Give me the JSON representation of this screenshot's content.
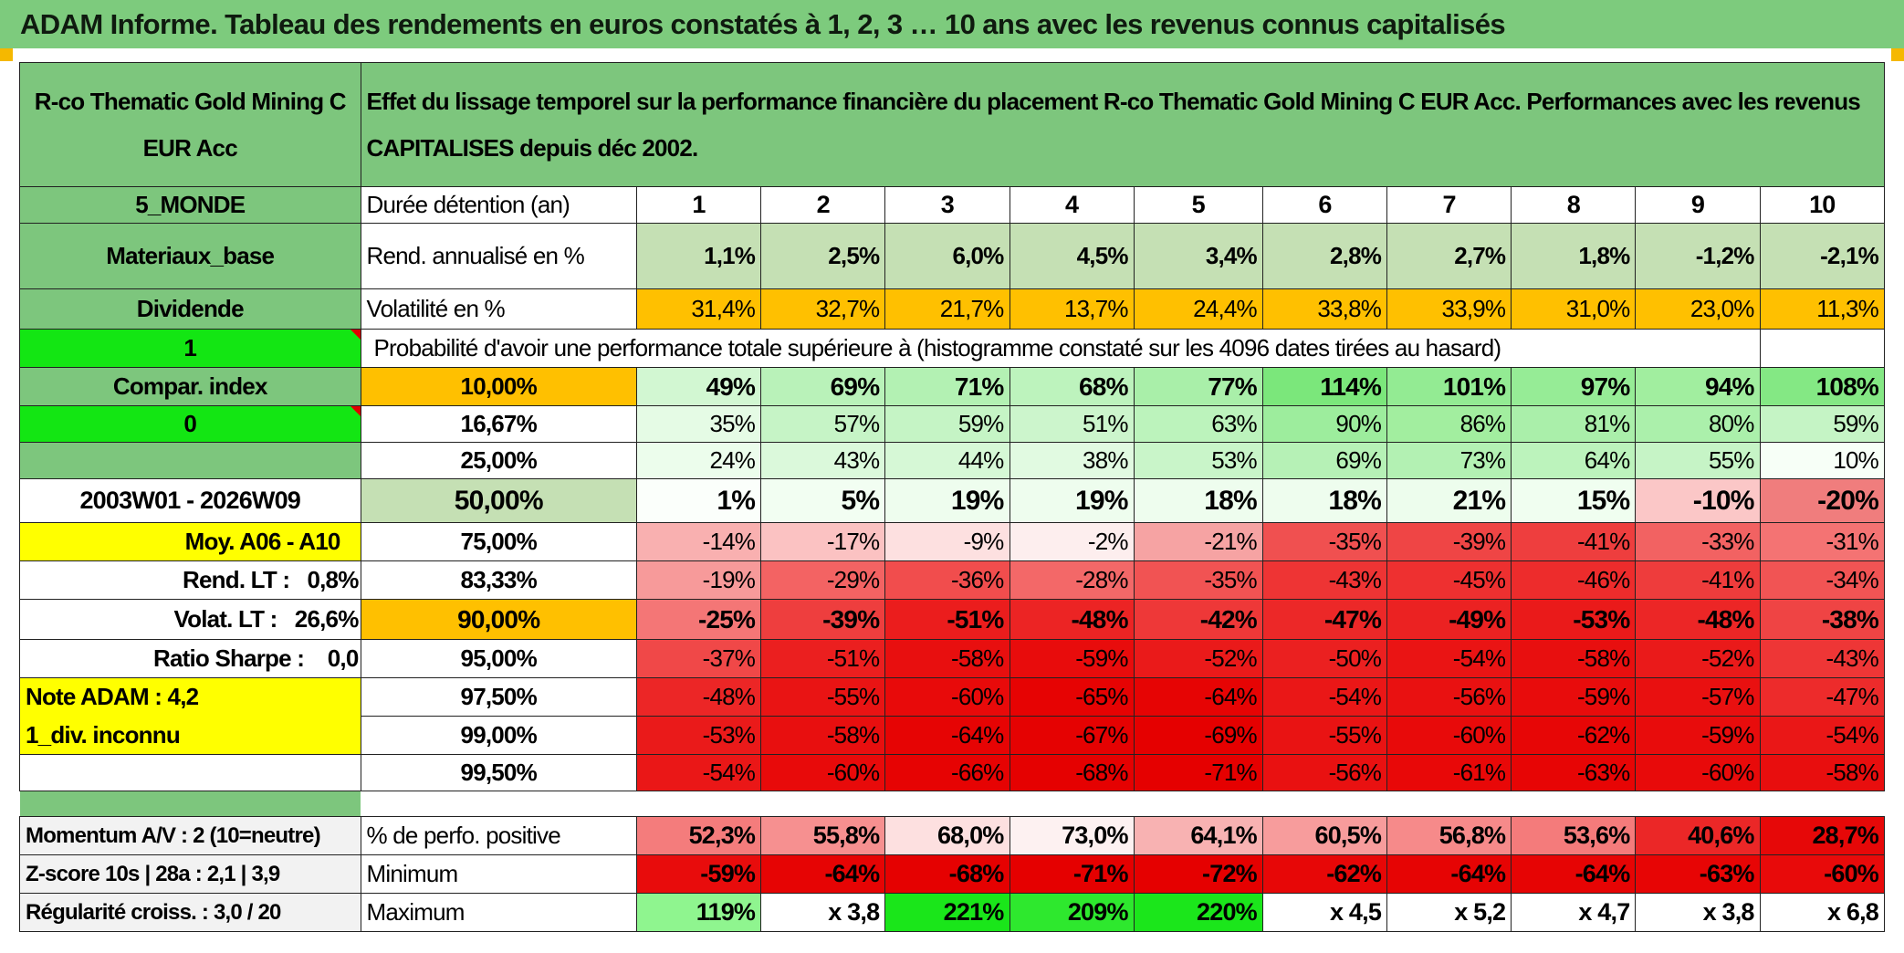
{
  "title": "ADAM Informe. Tableau des rendements en euros constatés à 1, 2, 3 … 10 ans avec les revenus connus capitalisés",
  "header": {
    "fund_name": "R-co Thematic Gold Mining C EUR Acc",
    "description": "Effet du lissage temporel sur la performance financière du placement R-co Thematic Gold Mining C EUR Acc. Performances avec les revenus CAPITALISES depuis déc 2002."
  },
  "side": {
    "zone": "5_MONDE",
    "sector": "Materiaux_base",
    "type": "Dividende",
    "flag1": "1",
    "compar": "Compar. index",
    "flag0": "0",
    "period": "2003W01 - 2026W09",
    "moy": "Moy. A06 - A10",
    "rend_lt": "Rend. LT :   0,8%",
    "volat_lt": "Volat. LT :   26,6%",
    "sharpe": "Ratio Sharpe :    0,0",
    "note": "Note ADAM : 4,2",
    "div": "1_div. inconnu"
  },
  "labels": {
    "duree": "Durée détention (an)",
    "rend": "Rend. annualisé en %",
    "vol": "Volatilité en %",
    "proba": "Probabilité d'avoir une performance totale supérieure à (histogramme constaté sur les 4096 dates tirées au hasard)"
  },
  "years": [
    "1",
    "2",
    "3",
    "4",
    "5",
    "6",
    "7",
    "8",
    "9",
    "10"
  ],
  "rend": [
    "1,1%",
    "2,5%",
    "6,0%",
    "4,5%",
    "3,4%",
    "2,8%",
    "2,7%",
    "1,8%",
    "-1,2%",
    "-2,1%"
  ],
  "vol": [
    "31,4%",
    "32,7%",
    "21,7%",
    "13,7%",
    "24,4%",
    "33,8%",
    "33,9%",
    "31,0%",
    "23,0%",
    "11,3%"
  ],
  "colors": {
    "title_bar": "#7dcb7d",
    "header_green": "#7dc67d",
    "bright_green": "#13e613",
    "yellow": "#ffff00",
    "orange": "#ffc000",
    "red_text": "#e00000"
  },
  "pct_rows": [
    {
      "p": "10,00%",
      "v": [
        "49%",
        "69%",
        "71%",
        "68%",
        "77%",
        "114%",
        "101%",
        "97%",
        "94%",
        "108%"
      ],
      "c": [
        "#d2f7d2",
        "#b9f2b9",
        "#b3f1b3",
        "#bdf3bd",
        "#a9efa9",
        "#7be77b",
        "#93eb93",
        "#96ec96",
        "#a1ee9f",
        "#84e884"
      ]
    },
    {
      "p": "16,67%",
      "v": [
        "35%",
        "57%",
        "59%",
        "51%",
        "63%",
        "90%",
        "86%",
        "81%",
        "80%",
        "59%"
      ],
      "c": [
        "#e5fbe5",
        "#c6f4c6",
        "#c5f4c5",
        "#ccf5cc",
        "#bcf3bc",
        "#9ded9d",
        "#a2ee9f",
        "#aaefaa",
        "#abf0ab",
        "#c5f4c5"
      ]
    },
    {
      "p": "25,00%",
      "v": [
        "24%",
        "43%",
        "44%",
        "38%",
        "53%",
        "69%",
        "73%",
        "64%",
        "55%",
        "10%"
      ],
      "c": [
        "#ecfdec",
        "#dbf9db",
        "#d6f8d6",
        "#e1fae1",
        "#c9f5c9",
        "#b6f1b6",
        "#b3f1b3",
        "#bcf3bc",
        "#c6f4c6",
        "#f7fff7"
      ]
    },
    {
      "p": "50,00%",
      "v": [
        "1%",
        "5%",
        "19%",
        "19%",
        "18%",
        "18%",
        "21%",
        "15%",
        "-10%",
        "-20%"
      ],
      "c": [
        "#fbfffb",
        "#f2fef2",
        "#eefdee",
        "#eefdee",
        "#eefdee",
        "#eefdee",
        "#edfded",
        "#f0fef0",
        "#fbc7c7",
        "#f07d7d"
      ]
    },
    {
      "p": "75,00%",
      "v": [
        "-14%",
        "-17%",
        "-9%",
        "-2%",
        "-21%",
        "-35%",
        "-39%",
        "-41%",
        "-33%",
        "-31%"
      ],
      "c": [
        "#f9b0b0",
        "#fbc2c2",
        "#fde0e0",
        "#fdeeee",
        "#f6a3a3",
        "#f05050",
        "#ef4545",
        "#ee3e3e",
        "#f26262",
        "#f47373"
      ]
    },
    {
      "p": "83,33%",
      "v": [
        "-19%",
        "-29%",
        "-36%",
        "-28%",
        "-35%",
        "-43%",
        "-45%",
        "-46%",
        "-41%",
        "-34%"
      ],
      "c": [
        "#f79a9a",
        "#f36363",
        "#f14d4d",
        "#f36868",
        "#f15353",
        "#ee3434",
        "#ee3030",
        "#ed2c2c",
        "#ee3c3c",
        "#f15454"
      ]
    },
    {
      "p": "90,00%",
      "v": [
        "-25%",
        "-39%",
        "-51%",
        "-48%",
        "-42%",
        "-47%",
        "-49%",
        "-53%",
        "-48%",
        "-38%"
      ],
      "c": [
        "#f47676",
        "#ee3e3e",
        "#eb1d1d",
        "#ec2424",
        "#ee3838",
        "#ec2828",
        "#eb2222",
        "#ea1a1a",
        "#ec2626",
        "#ef4444"
      ]
    },
    {
      "p": "95,00%",
      "v": [
        "-37%",
        "-51%",
        "-58%",
        "-59%",
        "-52%",
        "-50%",
        "-54%",
        "-58%",
        "-52%",
        "-43%"
      ],
      "c": [
        "#f04848",
        "#eb1f1f",
        "#e80f0f",
        "#e80c0c",
        "#ea1a1a",
        "#eb2020",
        "#ea1414",
        "#e80f0f",
        "#ea1a1a",
        "#ee3636"
      ]
    },
    {
      "p": "97,50%",
      "v": [
        "-48%",
        "-55%",
        "-60%",
        "-65%",
        "-64%",
        "-54%",
        "-56%",
        "-59%",
        "-57%",
        "-47%"
      ],
      "c": [
        "#ec2626",
        "#e91414",
        "#e80a0a",
        "#e60303",
        "#e60404",
        "#ea1717",
        "#e91111",
        "#e80c0c",
        "#e91010",
        "#ed2b2b"
      ]
    },
    {
      "p": "99,00%",
      "v": [
        "-53%",
        "-58%",
        "-64%",
        "-67%",
        "-69%",
        "-55%",
        "-60%",
        "-62%",
        "-59%",
        "-54%"
      ],
      "c": [
        "#ea1a1a",
        "#e80f0f",
        "#e60404",
        "#e50202",
        "#e50000",
        "#e91313",
        "#e80a0a",
        "#e70606",
        "#e80c0c",
        "#ea1717"
      ]
    },
    {
      "p": "99,50%",
      "v": [
        "-54%",
        "-60%",
        "-66%",
        "-68%",
        "-71%",
        "-56%",
        "-61%",
        "-63%",
        "-60%",
        "-58%"
      ],
      "c": [
        "#ea1717",
        "#e80a0a",
        "#e60303",
        "#e50101",
        "#e50000",
        "#e91111",
        "#e80808",
        "#e70505",
        "#e80a0a",
        "#e80e0e"
      ]
    }
  ],
  "bottom": {
    "momentum": "Momentum A/V : 2 (10=neutre)",
    "zscore": "Z-score 10s | 28a : 2,1 | 3,9",
    "regularite": "Régularité croiss. : 3,0 / 20",
    "pos_label": "% de perfo. positive",
    "min_label": "Minimum",
    "max_label": "Maximum",
    "pos": [
      "52,3%",
      "55,8%",
      "68,0%",
      "73,0%",
      "64,1%",
      "60,5%",
      "56,8%",
      "53,6%",
      "40,6%",
      "28,7%"
    ],
    "pos_c": [
      "#f47c7c",
      "#f69090",
      "#fde0e0",
      "#fdf1f1",
      "#f8b2b2",
      "#f79c9c",
      "#f68a8a",
      "#f47b7b",
      "#eb2727",
      "#e60808"
    ],
    "min": [
      "-59%",
      "-64%",
      "-68%",
      "-71%",
      "-72%",
      "-62%",
      "-64%",
      "-64%",
      "-63%",
      "-60%"
    ],
    "min_c": [
      "#e80c0c",
      "#e60404",
      "#e50101",
      "#e50000",
      "#e50000",
      "#e70707",
      "#e60404",
      "#e60404",
      "#e70505",
      "#e80a0a"
    ],
    "max": [
      "119%",
      "x 3,8",
      "221%",
      "209%",
      "220%",
      "x 4,5",
      "x 5,2",
      "x 4,7",
      "x 3,8",
      "x 6,8"
    ],
    "max_c": [
      "#8ff58f",
      "#ffffff",
      "#1ae61a",
      "#2ee82e",
      "#1be61b",
      "#ffffff",
      "#ffffff",
      "#ffffff",
      "#ffffff",
      "#ffffff"
    ]
  }
}
